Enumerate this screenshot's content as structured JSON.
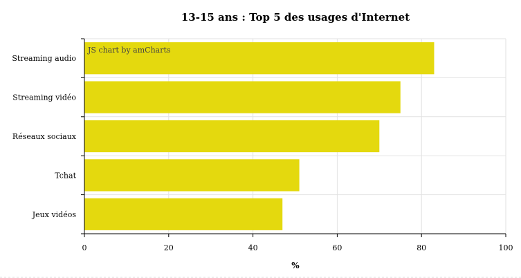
{
  "chart_data": {
    "type": "bar",
    "orientation": "horizontal",
    "title": "13-15 ans : Top 5 des usages d'Internet",
    "categories": [
      "Streaming audio",
      "Streaming vidéo",
      "Réseaux sociaux",
      "Tchat",
      "Jeux vidéos"
    ],
    "values": [
      83,
      75,
      70,
      51,
      47
    ],
    "xlabel": "%",
    "ylabel": "",
    "xlim": [
      0,
      100
    ],
    "xticks": [
      0,
      20,
      40,
      60,
      80,
      100
    ],
    "grid": true,
    "bar_color": "#e4d90e",
    "credit": "JS chart by amCharts"
  }
}
